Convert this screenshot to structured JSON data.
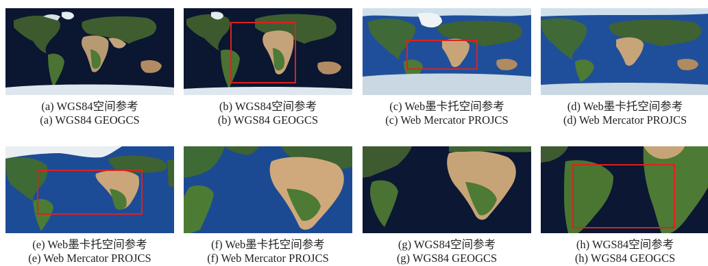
{
  "colors": {
    "ocean_geo": "#0b1630",
    "ocean_merc": "#1f4f9a",
    "ice": "#dfe7ee",
    "roi": "#e0201e",
    "caption": "#222222"
  },
  "panels": [
    {
      "id": "a",
      "caption_cn": "(a) WGS84空间参考",
      "caption_en": "(a) WGS84  GEOGCS",
      "projection": "geographic",
      "zoom": "world",
      "has_roi": false
    },
    {
      "id": "b",
      "caption_cn": "(b) WGS84空间参考",
      "caption_en": "(b) WGS84  GEOGCS",
      "projection": "geographic",
      "zoom": "world",
      "has_roi": true
    },
    {
      "id": "c",
      "caption_cn": "(c) Web墨卡托空间参考",
      "caption_en": "(c) Web Mercator PROJCS",
      "projection": "mercator",
      "zoom": "world",
      "has_roi": true
    },
    {
      "id": "d",
      "caption_cn": "(d) Web墨卡托空间参考",
      "caption_en": "(d) Web Mercator PROJCS",
      "projection": "mercator",
      "zoom": "world",
      "has_roi": false
    },
    {
      "id": "e",
      "caption_cn": "(e) Web墨卡托空间参考",
      "caption_en": "(e) Web Mercator PROJCS",
      "projection": "mercator",
      "zoom": "atlantic",
      "has_roi": true
    },
    {
      "id": "f",
      "caption_cn": "(f) Web墨卡托空间参考",
      "caption_en": "(f) Web Mercator PROJCS",
      "projection": "mercator",
      "zoom": "atlantic-close",
      "has_roi": false
    },
    {
      "id": "g",
      "caption_cn": "(g) WGS84空间参考",
      "caption_en": "(g) WGS84  GEOGCS",
      "projection": "geographic",
      "zoom": "atlantic",
      "has_roi": false
    },
    {
      "id": "h",
      "caption_cn": "(h) WGS84空间参考",
      "caption_en": "(h) WGS84  GEOGCS",
      "projection": "geographic",
      "zoom": "atlantic-close",
      "has_roi": true
    }
  ]
}
